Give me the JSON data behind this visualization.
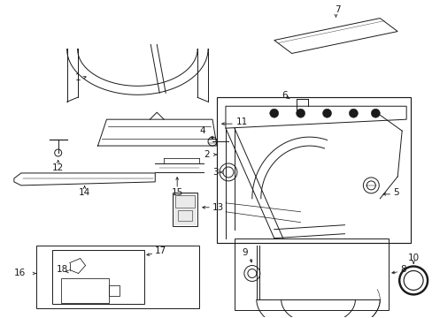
{
  "bg_color": "#ffffff",
  "line_color": "#1a1a1a",
  "fig_width": 4.89,
  "fig_height": 3.6,
  "dpi": 100,
  "gray": "#888888"
}
